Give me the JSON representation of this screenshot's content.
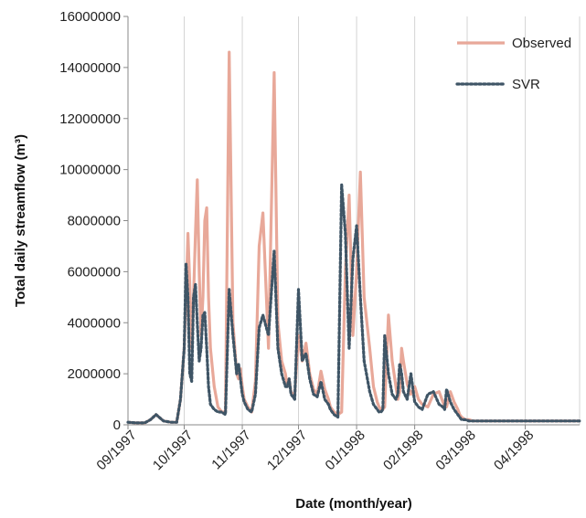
{
  "chart_data": {
    "type": "line",
    "xlabel": "Date (month/year)",
    "ylabel": "Total daily streamflow (m³)",
    "ylim": [
      0,
      16000000
    ],
    "y_ticks": [
      "0",
      "2000000",
      "4000000",
      "6000000",
      "8000000",
      "10000000",
      "12000000",
      "14000000",
      "16000000"
    ],
    "x_ticks": [
      "09/1997",
      "10/1997",
      "11/1997",
      "12/1997",
      "01/1998",
      "02/1998",
      "03/1998",
      "04/1998"
    ],
    "grid": "vertical",
    "legend_position": "top-right",
    "colors": {
      "observed": "#e8a899",
      "svr": "#3f5566"
    },
    "x": [
      "1997-09-01",
      "1997-09-05",
      "1997-09-10",
      "1997-09-13",
      "1997-09-16",
      "1997-09-20",
      "1997-09-24",
      "1997-09-27",
      "1997-09-29",
      "1997-10-01",
      "1997-10-02",
      "1997-10-03",
      "1997-10-04",
      "1997-10-05",
      "1997-10-06",
      "1997-10-07",
      "1997-10-08",
      "1997-10-09",
      "1997-10-10",
      "1997-10-11",
      "1997-10-12",
      "1997-10-13",
      "1997-10-14",
      "1997-10-15",
      "1997-10-17",
      "1997-10-19",
      "1997-10-21",
      "1997-10-23",
      "1997-10-25",
      "1997-10-27",
      "1997-10-29",
      "1997-10-30",
      "1997-10-31",
      "1997-11-01",
      "1997-11-02",
      "1997-11-04",
      "1997-11-06",
      "1997-11-08",
      "1997-11-10",
      "1997-11-12",
      "1997-11-15",
      "1997-11-18",
      "1997-11-20",
      "1997-11-22",
      "1997-11-24",
      "1997-11-25",
      "1997-11-26",
      "1997-11-27",
      "1997-11-28",
      "1997-11-29",
      "1997-12-01",
      "1997-12-03",
      "1997-12-05",
      "1997-12-07",
      "1997-12-09",
      "1997-12-11",
      "1997-12-13",
      "1997-12-15",
      "1997-12-17",
      "1997-12-18",
      "1997-12-19",
      "1997-12-20",
      "1997-12-22",
      "1997-12-24",
      "1997-12-26",
      "1997-12-28",
      "1997-12-30",
      "1998-01-01",
      "1998-01-03",
      "1998-01-05",
      "1998-01-08",
      "1998-01-10",
      "1998-01-12",
      "1998-01-13",
      "1998-01-14",
      "1998-01-15",
      "1998-01-16",
      "1998-01-18",
      "1998-01-20",
      "1998-01-22",
      "1998-01-23",
      "1998-01-24",
      "1998-01-25",
      "1998-01-26",
      "1998-01-28",
      "1998-01-30",
      "1998-02-01",
      "1998-02-03",
      "1998-02-05",
      "1998-02-08",
      "1998-02-11",
      "1998-02-14",
      "1998-02-16",
      "1998-02-17",
      "1998-02-18",
      "1998-02-20",
      "1998-02-22",
      "1998-02-24",
      "1998-02-25",
      "1998-02-26",
      "1998-02-28",
      "1998-03-02",
      "1998-03-04",
      "1998-03-06",
      "1998-03-08",
      "1998-03-10",
      "1998-03-13",
      "1998-03-16",
      "1998-03-19",
      "1998-03-22",
      "1998-03-25",
      "1998-03-28",
      "1998-04-01",
      "1998-04-05",
      "1998-04-10",
      "1998-04-15",
      "1998-04-20",
      "1998-04-25",
      "1998-04-30"
    ],
    "series": [
      {
        "name": "Observed",
        "values": [
          100000,
          80000,
          80000,
          200000,
          400000,
          150000,
          100000,
          100000,
          1000000,
          3000000,
          5000000,
          7500000,
          5500000,
          3000000,
          5000000,
          7500000,
          9600000,
          6000000,
          3500000,
          5000000,
          8000000,
          8500000,
          5000000,
          3000000,
          1500000,
          700000,
          500000,
          500000,
          14600000,
          4000000,
          2000000,
          1800000,
          2200000,
          1500000,
          1000000,
          700000,
          500000,
          1700000,
          7000000,
          8300000,
          3000000,
          13800000,
          4000000,
          2500000,
          2000000,
          1500000,
          1800000,
          1300000,
          1200000,
          1200000,
          3500000,
          2500000,
          3200000,
          2000000,
          1400000,
          1200000,
          2100000,
          1400000,
          1000000,
          700000,
          600000,
          500000,
          400000,
          500000,
          6000000,
          9000000,
          3500000,
          6000000,
          9900000,
          5000000,
          3000000,
          1500000,
          900000,
          700000,
          600000,
          600000,
          700000,
          4300000,
          2500000,
          1500000,
          1000000,
          1300000,
          3000000,
          2500000,
          1600000,
          1200000,
          1500000,
          1000000,
          800000,
          700000,
          1200000,
          1300000,
          900000,
          700000,
          700000,
          1300000,
          900000,
          600000,
          400000,
          300000,
          200000,
          200000,
          150000,
          150000,
          150000,
          150000,
          150000,
          150000,
          150000,
          150000,
          150000,
          150000,
          150000,
          150000,
          150000,
          150000,
          150000,
          150000,
          150000
        ]
      },
      {
        "name": "SVR",
        "values": [
          100000,
          80000,
          80000,
          200000,
          400000,
          150000,
          100000,
          100000,
          1000000,
          3000000,
          6300000,
          5000000,
          2000000,
          1700000,
          5000000,
          5500000,
          4000000,
          2500000,
          3000000,
          4300000,
          4400000,
          3000000,
          1500000,
          800000,
          600000,
          500000,
          500000,
          400000,
          5300000,
          3500000,
          2000000,
          2400000,
          1800000,
          1200000,
          900000,
          600000,
          500000,
          1200000,
          3800000,
          4300000,
          3500000,
          6800000,
          3000000,
          2000000,
          1500000,
          1500000,
          1800000,
          1200000,
          1100000,
          1000000,
          5300000,
          2500000,
          2800000,
          1800000,
          1200000,
          1100000,
          1700000,
          1000000,
          800000,
          600000,
          500000,
          400000,
          300000,
          9400000,
          7500000,
          3000000,
          6500000,
          7800000,
          5000000,
          2500000,
          1300000,
          800000,
          600000,
          500000,
          500000,
          600000,
          3500000,
          2000000,
          1200000,
          1000000,
          1200000,
          2400000,
          2000000,
          1300000,
          1000000,
          2000000,
          900000,
          700000,
          600000,
          1200000,
          1300000,
          800000,
          700000,
          600000,
          1400000,
          900000,
          600000,
          400000,
          300000,
          200000,
          200000,
          150000,
          150000,
          150000,
          150000,
          150000,
          150000,
          150000,
          150000,
          150000,
          150000,
          150000,
          150000,
          150000,
          150000,
          150000,
          150000,
          150000,
          150000
        ]
      }
    ]
  }
}
